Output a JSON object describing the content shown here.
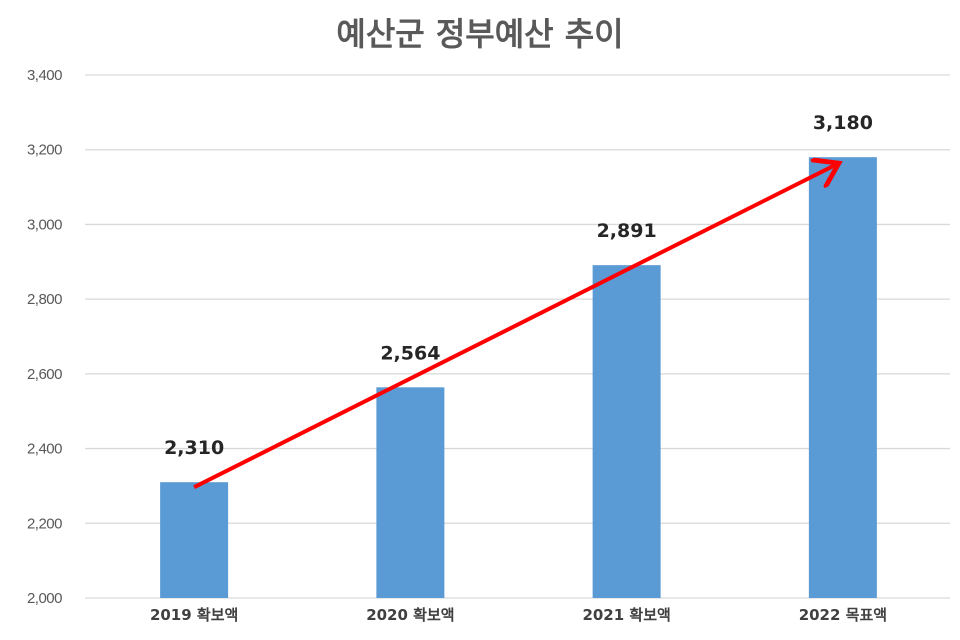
{
  "chart_data": {
    "type": "bar",
    "title": "예산군 정부예산 추이",
    "categories": [
      "2019 확보액",
      "2020 확보액",
      "2021 확보액",
      "2022 목표액"
    ],
    "values": [
      2310,
      2564,
      2891,
      3180
    ],
    "data_labels": [
      "2,310",
      "2,564",
      "2,891",
      "3,180"
    ],
    "xlabel": "",
    "ylabel": "",
    "ylim": [
      2000,
      3400
    ],
    "yticks": [
      2000,
      2200,
      2400,
      2600,
      2800,
      3000,
      3200,
      3400
    ],
    "ytick_labels": [
      "2,000",
      "2,200",
      "2,400",
      "2,600",
      "2,800",
      "3,000",
      "3,200",
      "3,400"
    ],
    "grid": true,
    "legend": "none",
    "annotation": "trend arrow from first to last bar",
    "colors": {
      "bar": "#5B9BD5",
      "arrow": "#FF0000",
      "grid": "#D9D9D9"
    }
  }
}
